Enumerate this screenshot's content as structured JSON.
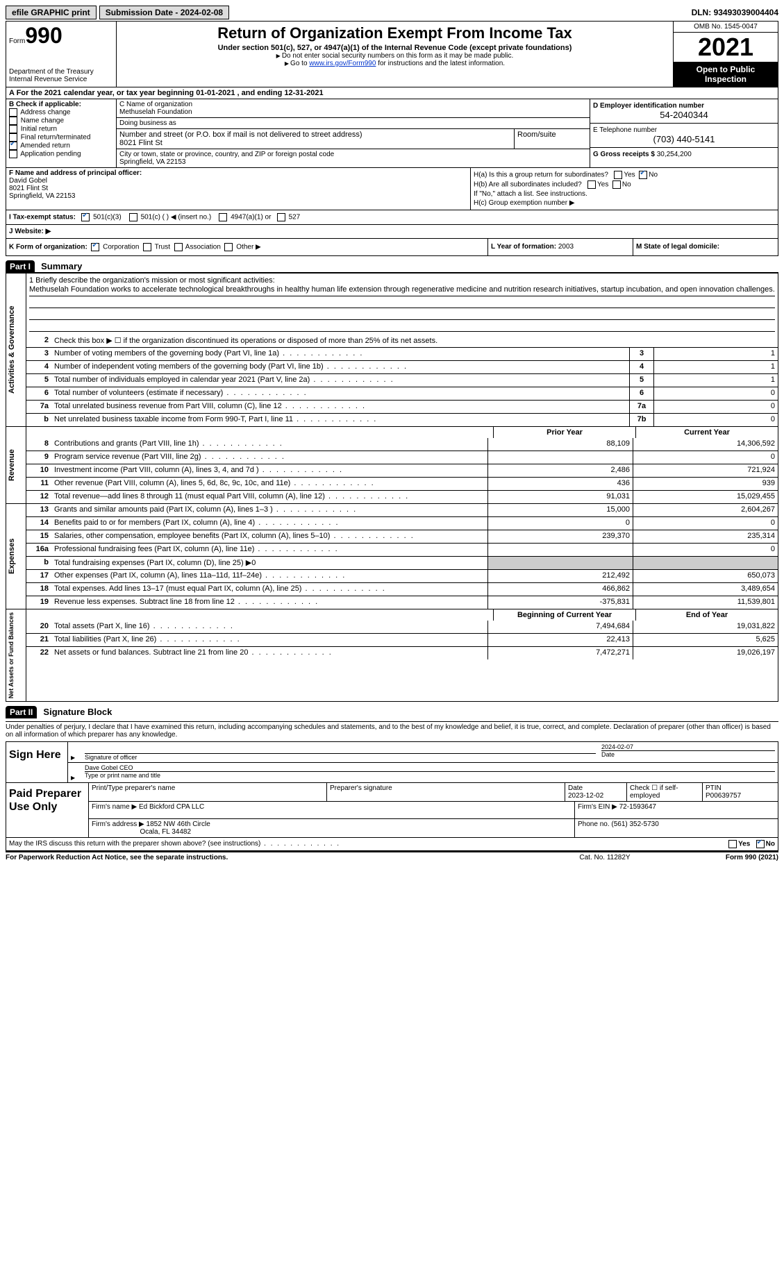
{
  "topbar": {
    "efile_btn": "efile GRAPHIC print",
    "sub_date_label": "Submission Date - ",
    "sub_date": "2024-02-08",
    "dln_label": "DLN: ",
    "dln": "93493039004404"
  },
  "header": {
    "form_label": "Form",
    "form_num": "990",
    "dept": "Department of the Treasury\nInternal Revenue Service",
    "title": "Return of Organization Exempt From Income Tax",
    "sub1": "Under section 501(c), 527, or 4947(a)(1) of the Internal Revenue Code (except private foundations)",
    "sub2": "Do not enter social security numbers on this form as it may be made public.",
    "sub3_pre": "Go to ",
    "sub3_link": "www.irs.gov/Form990",
    "sub3_post": " for instructions and the latest information.",
    "omb": "OMB No. 1545-0047",
    "year": "2021",
    "inspection": "Open to Public Inspection"
  },
  "row_a": "A For the 2021 calendar year, or tax year beginning 01-01-2021   , and ending 12-31-2021",
  "col_b": {
    "label": "B Check if applicable:",
    "items": [
      "Address change",
      "Name change",
      "Initial return",
      "Final return/terminated",
      "Amended return",
      "Application pending"
    ],
    "checked_index": 4
  },
  "col_c": {
    "name_label": "C Name of organization",
    "name": "Methuselah Foundation",
    "dba_label": "Doing business as",
    "street_label": "Number and street (or P.O. box if mail is not delivered to street address)",
    "street": "8021 Flint St",
    "suite_label": "Room/suite",
    "city_label": "City or town, state or province, country, and ZIP or foreign postal code",
    "city": "Springfield, VA  22153"
  },
  "col_d": {
    "ein_label": "D Employer identification number",
    "ein": "54-2040344",
    "phone_label": "E Telephone number",
    "phone": "(703) 440-5141",
    "gross_label": "G Gross receipts $ ",
    "gross": "30,254,200"
  },
  "col_f": {
    "label": "F Name and address of principal officer:",
    "name": "David Gobel",
    "addr1": "8021 Flint St",
    "addr2": "Springfield, VA  22153"
  },
  "col_h": {
    "ha": "H(a)  Is this a group return for subordinates?",
    "hb": "H(b)  Are all subordinates included?",
    "hnote": "If \"No,\" attach a list. See instructions.",
    "hc": "H(c)  Group exemption number ▶",
    "yes": "Yes",
    "no": "No"
  },
  "row_i": {
    "label": "I  Tax-exempt status:",
    "o1": "501(c)(3)",
    "o2": "501(c) (  ) ◀ (insert no.)",
    "o3": "4947(a)(1) or",
    "o4": "527"
  },
  "row_j": "J  Website: ▶",
  "row_k": {
    "label": "K Form of organization:",
    "o1": "Corporation",
    "o2": "Trust",
    "o3": "Association",
    "o4": "Other ▶"
  },
  "row_l": {
    "label": "L Year of formation: ",
    "val": "2003"
  },
  "row_m": "M State of legal domicile:",
  "part1": {
    "hdr": "Part I",
    "title": "Summary"
  },
  "mission": {
    "label": "1   Briefly describe the organization's mission or most significant activities:",
    "text": "Methuselah Foundation works to accelerate technological breakthroughs in healthy human life extension through regenerative medicine and nutrition research initiatives, startup incubation, and open innovation challenges."
  },
  "gov_rows": [
    {
      "n": "2",
      "d": "Check this box ▶ ☐  if the organization discontinued its operations or disposed of more than 25% of its net assets."
    },
    {
      "n": "3",
      "d": "Number of voting members of the governing body (Part VI, line 1a)",
      "bn": "3",
      "bv": "1"
    },
    {
      "n": "4",
      "d": "Number of independent voting members of the governing body (Part VI, line 1b)",
      "bn": "4",
      "bv": "1"
    },
    {
      "n": "5",
      "d": "Total number of individuals employed in calendar year 2021 (Part V, line 2a)",
      "bn": "5",
      "bv": "1"
    },
    {
      "n": "6",
      "d": "Total number of volunteers (estimate if necessary)",
      "bn": "6",
      "bv": "0"
    },
    {
      "n": "7a",
      "d": "Total unrelated business revenue from Part VIII, column (C), line 12",
      "bn": "7a",
      "bv": "0"
    },
    {
      "n": "b",
      "d": "Net unrelated business taxable income from Form 990-T, Part I, line 11",
      "bn": "7b",
      "bv": "0"
    }
  ],
  "col_hdrs": {
    "prior": "Prior Year",
    "current": "Current Year",
    "boy": "Beginning of Current Year",
    "eoy": "End of Year"
  },
  "rev_rows": [
    {
      "n": "8",
      "d": "Contributions and grants (Part VIII, line 1h)",
      "p": "88,109",
      "c": "14,306,592"
    },
    {
      "n": "9",
      "d": "Program service revenue (Part VIII, line 2g)",
      "p": "",
      "c": "0"
    },
    {
      "n": "10",
      "d": "Investment income (Part VIII, column (A), lines 3, 4, and 7d )",
      "p": "2,486",
      "c": "721,924"
    },
    {
      "n": "11",
      "d": "Other revenue (Part VIII, column (A), lines 5, 6d, 8c, 9c, 10c, and 11e)",
      "p": "436",
      "c": "939"
    },
    {
      "n": "12",
      "d": "Total revenue—add lines 8 through 11 (must equal Part VIII, column (A), line 12)",
      "p": "91,031",
      "c": "15,029,455"
    }
  ],
  "exp_rows": [
    {
      "n": "13",
      "d": "Grants and similar amounts paid (Part IX, column (A), lines 1–3 )",
      "p": "15,000",
      "c": "2,604,267"
    },
    {
      "n": "14",
      "d": "Benefits paid to or for members (Part IX, column (A), line 4)",
      "p": "0",
      "c": "0"
    },
    {
      "n": "15",
      "d": "Salaries, other compensation, employee benefits (Part IX, column (A), lines 5–10)",
      "p": "239,370",
      "c": "235,314"
    },
    {
      "n": "16a",
      "d": "Professional fundraising fees (Part IX, column (A), line 11e)",
      "p": "",
      "c": "0"
    },
    {
      "n": "b",
      "d": "Total fundraising expenses (Part IX, column (D), line 25) ▶0",
      "grey": true
    },
    {
      "n": "17",
      "d": "Other expenses (Part IX, column (A), lines 11a–11d, 11f–24e)",
      "p": "212,492",
      "c": "650,073"
    },
    {
      "n": "18",
      "d": "Total expenses. Add lines 13–17 (must equal Part IX, column (A), line 25)",
      "p": "466,862",
      "c": "3,489,654"
    },
    {
      "n": "19",
      "d": "Revenue less expenses. Subtract line 18 from line 12",
      "p": "-375,831",
      "c": "11,539,801"
    }
  ],
  "net_rows": [
    {
      "n": "20",
      "d": "Total assets (Part X, line 16)",
      "p": "7,494,684",
      "c": "19,031,822"
    },
    {
      "n": "21",
      "d": "Total liabilities (Part X, line 26)",
      "p": "22,413",
      "c": "5,625"
    },
    {
      "n": "22",
      "d": "Net assets or fund balances. Subtract line 21 from line 20",
      "p": "7,472,271",
      "c": "19,026,197"
    }
  ],
  "part2": {
    "hdr": "Part II",
    "title": "Signature Block"
  },
  "sig_decl": "Under penalties of perjury, I declare that I have examined this return, including accompanying schedules and statements, and to the best of my knowledge and belief, it is true, correct, and complete. Declaration of preparer (other than officer) is based on all information of which preparer has any knowledge.",
  "sign": {
    "here": "Sign Here",
    "sig_label": "Signature of officer",
    "date": "2024-02-07",
    "date_label": "Date",
    "name": "Dave Gobel  CEO",
    "name_label": "Type or print name and title"
  },
  "paid": {
    "label": "Paid Preparer Use Only",
    "r1": {
      "c1": "Print/Type preparer's name",
      "c2": "Preparer's signature",
      "c3_l": "Date",
      "c3_v": "2023-12-02",
      "c4": "Check ☐ if self-employed",
      "c5_l": "PTIN",
      "c5_v": "P00639757"
    },
    "r2": {
      "c1_l": "Firm's name    ▶ ",
      "c1_v": "Ed Bickford CPA LLC",
      "c2_l": "Firm's EIN ▶ ",
      "c2_v": "72-1593647"
    },
    "r3": {
      "c1_l": "Firm's address ▶ ",
      "c1_v": "1852 NW 46th Circle",
      "c1_v2": "Ocala, FL  34482",
      "c2_l": "Phone no. ",
      "c2_v": "(561) 352-5730"
    }
  },
  "discuss": {
    "text": "May the IRS discuss this return with the preparer shown above? (see instructions)",
    "yes": "Yes",
    "no": "No"
  },
  "footer": {
    "l": "For Paperwork Reduction Act Notice, see the separate instructions.",
    "m": "Cat. No. 11282Y",
    "r": "Form 990 (2021)"
  },
  "side_labels": {
    "gov": "Activities & Governance",
    "rev": "Revenue",
    "exp": "Expenses",
    "net": "Net Assets or Fund Balances"
  }
}
